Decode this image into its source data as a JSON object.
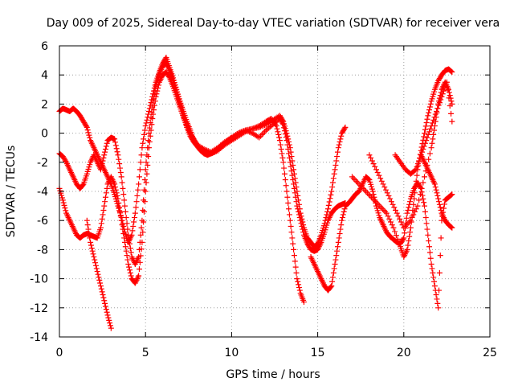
{
  "chart_data": {
    "type": "scatter",
    "title": "Day 009 of 2025, Sidereal Day-to-day VTEC variation (SDTVAR) for receiver vera",
    "xlabel": "GPS time / hours",
    "ylabel": "SDTVAR / TECUs",
    "xlim": [
      0,
      25
    ],
    "ylim": [
      -14,
      6
    ],
    "xticks": [
      0,
      5,
      10,
      15,
      20,
      25
    ],
    "yticks": [
      -14,
      -12,
      -10,
      -8,
      -6,
      -4,
      -2,
      0,
      2,
      4,
      6
    ],
    "grid": true,
    "legend": "none",
    "marker": "+",
    "color": "#ff0000",
    "series": [
      {
        "x": [
          0.0,
          0.2,
          0.4,
          0.6,
          0.8,
          1.0,
          1.2,
          1.4,
          1.6,
          1.8,
          2.0,
          2.2,
          2.4,
          2.6,
          2.8,
          3.0,
          3.2,
          3.4,
          3.6,
          3.8,
          4.0,
          4.2,
          4.4,
          4.6,
          4.8,
          5.0,
          5.2,
          5.4,
          5.6,
          5.8,
          6.0,
          6.2,
          6.4,
          6.6,
          6.8,
          7.0,
          7.2,
          7.4,
          7.6,
          7.8,
          8.0,
          8.2,
          8.4,
          8.6,
          8.8,
          9.0,
          9.2,
          9.4,
          9.6,
          9.8,
          10.0,
          10.4,
          10.8,
          11.2,
          11.6,
          12.0,
          12.3,
          12.6,
          12.8,
          13.0,
          13.2,
          13.4,
          13.6,
          13.8,
          14.0,
          14.2
        ],
        "values": [
          1.5,
          1.7,
          1.6,
          1.5,
          1.7,
          1.5,
          1.2,
          0.8,
          0.4,
          -0.5,
          -1.0,
          -1.5,
          -2.0,
          -2.5,
          -3.0,
          -3.5,
          -4.2,
          -5.0,
          -5.8,
          -6.8,
          -7.5,
          -7.0,
          -5.5,
          -3.5,
          -1.0,
          0.5,
          1.5,
          2.5,
          3.5,
          4.2,
          4.8,
          5.2,
          4.5,
          3.8,
          3.0,
          2.2,
          1.5,
          0.8,
          0.2,
          -0.5,
          -0.9,
          -1.2,
          -1.4,
          -1.5,
          -1.4,
          -1.3,
          -1.1,
          -0.9,
          -0.7,
          -0.5,
          -0.3,
          0.0,
          0.2,
          0.3,
          0.5,
          0.8,
          1.0,
          0.5,
          -0.5,
          -2.0,
          -4.0,
          -6.0,
          -8.0,
          -10.0,
          -11.0,
          -11.6
        ]
      },
      {
        "x": [
          0.0,
          0.2,
          0.4,
          0.6,
          0.8,
          1.0,
          1.2,
          1.4,
          1.6,
          1.8,
          2.0,
          2.2,
          2.4,
          2.6,
          2.8,
          3.0,
          3.2,
          3.4,
          3.6,
          3.8,
          4.0,
          4.2,
          4.4,
          4.6,
          4.8,
          5.0,
          5.2,
          5.4,
          5.6,
          5.8,
          6.0,
          6.2,
          6.4,
          6.6,
          6.8,
          7.0,
          7.2,
          7.4,
          7.6,
          7.8,
          8.0,
          8.4,
          8.8,
          9.2,
          9.6,
          10.0,
          10.4,
          10.8,
          11.2,
          11.6,
          12.0,
          12.4,
          12.8,
          13.0,
          13.2,
          13.4,
          13.6,
          13.8,
          14.0,
          14.2,
          14.4,
          14.6,
          14.8,
          15.0,
          15.2,
          15.4,
          15.6,
          15.8,
          16.0,
          16.2,
          16.4,
          16.6
        ],
        "values": [
          -1.4,
          -1.6,
          -2.0,
          -2.5,
          -3.0,
          -3.5,
          -3.8,
          -3.5,
          -2.8,
          -2.0,
          -1.5,
          -2.0,
          -2.5,
          -1.5,
          -0.5,
          -0.3,
          -0.4,
          -1.5,
          -3.0,
          -5.0,
          -7.0,
          -8.5,
          -9.0,
          -8.5,
          -6.0,
          -2.5,
          0.0,
          1.8,
          3.2,
          4.0,
          4.6,
          4.8,
          4.3,
          3.6,
          2.8,
          2.0,
          1.2,
          0.4,
          -0.2,
          -0.6,
          -0.9,
          -1.2,
          -1.4,
          -1.2,
          -0.8,
          -0.5,
          -0.2,
          0.1,
          0.3,
          0.4,
          0.6,
          0.9,
          1.2,
          0.8,
          0.0,
          -1.0,
          -2.5,
          -4.0,
          -5.5,
          -6.5,
          -7.2,
          -7.5,
          -7.8,
          -7.6,
          -7.0,
          -6.2,
          -5.2,
          -4.0,
          -2.5,
          -1.0,
          0.0,
          0.4
        ]
      },
      {
        "x": [
          0.0,
          0.2,
          0.4,
          0.6,
          0.8,
          1.0,
          1.2,
          1.4,
          1.6,
          1.8,
          2.0,
          2.2,
          2.4,
          2.6,
          2.8,
          3.0,
          3.2,
          3.4,
          3.6,
          3.8,
          4.0,
          4.2,
          4.4,
          4.6,
          4.8,
          5.0,
          5.2,
          5.4,
          5.6,
          5.8,
          6.0,
          6.2,
          6.4,
          6.6,
          6.8,
          7.0,
          7.2,
          7.4,
          7.6,
          7.8,
          8.0,
          8.4,
          8.8,
          9.2,
          9.6,
          10.0,
          10.4,
          10.8,
          11.2,
          11.6,
          12.0,
          12.4,
          12.8,
          13.0,
          13.2,
          13.4,
          13.6,
          13.8,
          14.0,
          14.2,
          14.4,
          14.6,
          14.8,
          15.0,
          15.2,
          15.4,
          15.6,
          15.8,
          16.0,
          16.2,
          16.4,
          16.6
        ],
        "values": [
          -3.8,
          -4.6,
          -5.5,
          -6.0,
          -6.5,
          -7.0,
          -7.2,
          -7.0,
          -6.9,
          -7.0,
          -7.1,
          -7.2,
          -6.5,
          -5.0,
          -3.5,
          -3.0,
          -3.5,
          -4.5,
          -6.0,
          -7.5,
          -9.0,
          -10.0,
          -10.3,
          -9.8,
          -7.5,
          -4.0,
          -1.0,
          1.0,
          2.5,
          3.5,
          4.0,
          4.2,
          3.8,
          3.2,
          2.5,
          1.8,
          1.1,
          0.5,
          0.0,
          -0.4,
          -0.8,
          -1.1,
          -1.3,
          -1.0,
          -0.6,
          -0.3,
          0.0,
          0.2,
          0.0,
          -0.3,
          0.2,
          0.6,
          1.0,
          0.6,
          -0.5,
          -2.0,
          -3.5,
          -5.0,
          -6.0,
          -7.0,
          -7.6,
          -8.0,
          -8.1,
          -8.0,
          -7.5,
          -6.8,
          -6.0,
          -5.5,
          -5.2,
          -5.0,
          -4.9,
          -4.8
        ]
      },
      {
        "x": [
          1.6,
          1.8,
          2.0,
          2.2,
          2.4,
          2.6,
          2.8,
          3.0
        ],
        "values": [
          -6.0,
          -7.5,
          -8.5,
          -9.5,
          -10.5,
          -11.5,
          -12.5,
          -13.4
        ]
      },
      {
        "x": [
          14.6,
          14.8,
          15.0,
          15.2,
          15.4,
          15.6,
          15.8,
          16.0,
          16.2,
          16.4,
          16.6,
          16.8,
          17.0,
          17.2,
          17.4,
          17.6,
          17.8,
          18.0,
          18.2,
          18.4,
          18.6,
          18.8,
          19.0,
          19.2,
          19.4,
          19.6,
          19.8,
          20.0,
          20.2,
          20.4,
          20.6,
          20.8,
          21.0,
          21.2,
          21.4,
          21.6,
          21.8,
          22.0,
          22.2,
          22.4,
          22.6,
          22.8
        ],
        "values": [
          -8.5,
          -9.0,
          -9.5,
          -10.0,
          -10.5,
          -10.8,
          -10.5,
          -9.0,
          -7.5,
          -6.0,
          -5.0,
          -4.8,
          -4.5,
          -4.2,
          -4.0,
          -3.5,
          -3.0,
          -3.2,
          -4.0,
          -5.0,
          -5.8,
          -6.3,
          -6.8,
          -7.1,
          -7.3,
          -7.5,
          -7.6,
          -7.2,
          -5.5,
          -4.5,
          -3.8,
          -3.4,
          -3.8,
          -5.0,
          -7.0,
          -9.0,
          -10.5,
          -12.0,
          -6.0,
          -4.6,
          -4.4,
          -4.2
        ]
      },
      {
        "x": [
          17.0,
          17.4,
          17.8,
          18.2,
          18.6,
          19.0,
          19.4,
          19.8,
          20.0,
          20.2,
          20.4,
          20.6,
          20.8,
          21.0,
          21.2,
          21.4,
          21.6,
          21.8,
          22.0,
          22.2,
          22.4,
          22.6,
          22.8
        ],
        "values": [
          -3.0,
          -3.5,
          -4.0,
          -4.5,
          -5.0,
          -5.5,
          -6.5,
          -7.8,
          -8.5,
          -8.0,
          -6.5,
          -4.5,
          -2.5,
          -1.2,
          0.0,
          1.2,
          2.2,
          3.0,
          3.6,
          4.0,
          4.3,
          4.4,
          4.2
        ]
      },
      {
        "x": [
          18.0,
          18.4,
          18.8,
          19.2,
          19.6,
          20.0,
          20.4,
          20.8,
          21.2,
          21.6,
          21.8,
          22.0,
          22.2,
          22.4,
          22.6,
          22.8
        ],
        "values": [
          -1.5,
          -2.5,
          -3.5,
          -4.5,
          -5.5,
          -6.5,
          -6.0,
          -5.0,
          -3.0,
          -1.0,
          0.5,
          2.0,
          3.0,
          3.5,
          3.0,
          2.0
        ]
      },
      {
        "x": [
          19.5,
          19.8,
          20.1,
          20.4,
          20.7,
          21.0,
          21.3,
          21.6,
          21.9,
          22.2,
          22.5,
          22.8
        ],
        "values": [
          -1.5,
          -2.0,
          -2.5,
          -2.8,
          -2.5,
          -1.5,
          -0.5,
          0.5,
          1.5,
          2.5,
          3.5,
          0.8
        ]
      },
      {
        "x": [
          21.0,
          21.2,
          21.4,
          21.6,
          21.8,
          22.0,
          22.2,
          22.4,
          22.6,
          22.8
        ],
        "values": [
          -1.5,
          -2.0,
          -2.5,
          -3.0,
          -3.5,
          -4.5,
          -5.5,
          -6.0,
          -6.3,
          -6.5
        ]
      }
    ]
  }
}
